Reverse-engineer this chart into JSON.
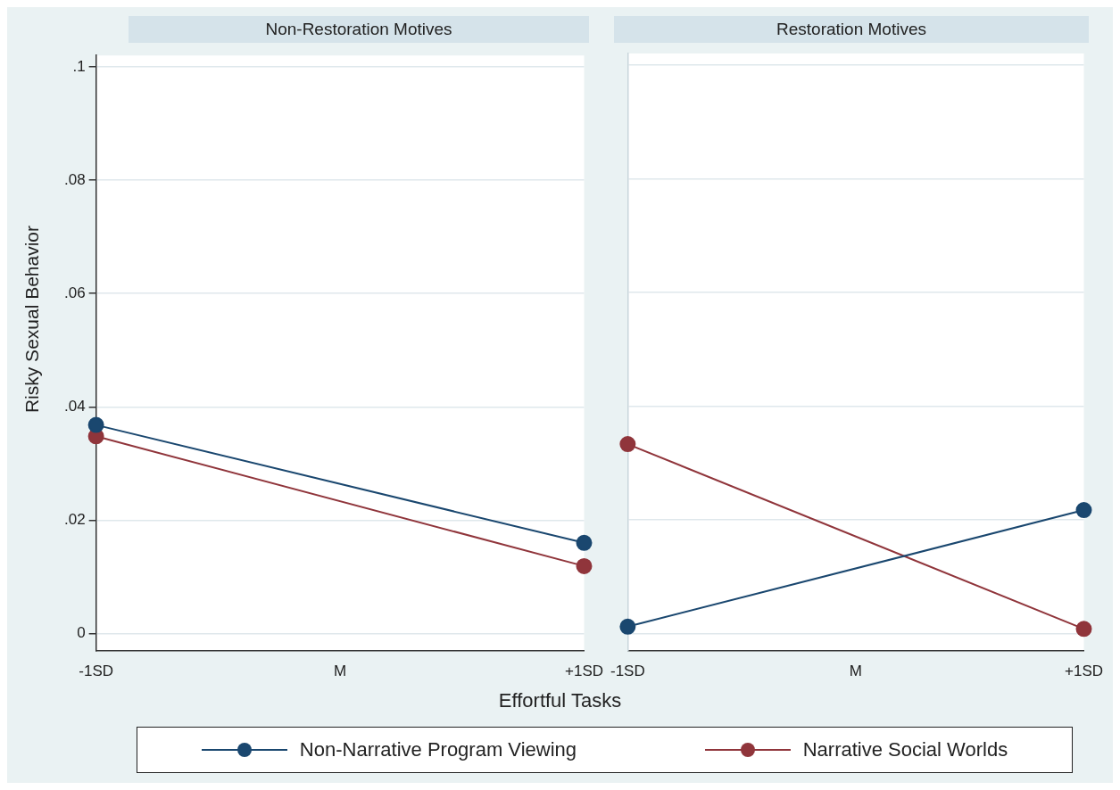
{
  "chart_data": [
    {
      "type": "line",
      "title": "Non-Restoration Motives",
      "xlabel": "Effortful Tasks",
      "ylabel": "Risky Sexual Behavior",
      "categories": [
        "-1SD",
        "M",
        "+1SD"
      ],
      "series": [
        {
          "name": "Non-Narrative Program Viewing",
          "color": "#1a476f",
          "values": [
            0.0368,
            null,
            0.016
          ]
        },
        {
          "name": "Narrative Social Worlds",
          "color": "#90353b",
          "values": [
            0.0348,
            null,
            0.0119
          ]
        }
      ],
      "ylim": [
        -0.003,
        0.102
      ],
      "yticks": [
        0,
        {
          "value": 0.02,
          "label": ".02"
        },
        {
          "value": 0.04,
          "label": ".04"
        },
        {
          "value": 0.06,
          "label": ".06"
        },
        {
          "value": 0.08,
          "label": ".08"
        },
        {
          "value": 0.1,
          "label": ".1"
        }
      ],
      "grid": "y",
      "legend": "bottom",
      "marker": "circle",
      "line_style": "solid"
    },
    {
      "type": "line",
      "title": "Restoration Motives",
      "categories": [
        "-1SD",
        "M",
        "+1SD"
      ],
      "series": [
        {
          "color": "#1a476f",
          "values": [
            0.0012,
            null,
            0.0217
          ]
        },
        {
          "color": "#90353b",
          "values": [
            0.0333,
            null,
            0.0008
          ]
        }
      ],
      "ylim": [
        -0.003,
        0.102
      ],
      "yticks": [
        0,
        0.02,
        0.04,
        0.06,
        0.08,
        0.1
      ],
      "grid": "y",
      "tick_labels": "x",
      "marker": "circle",
      "line_style": "solid"
    }
  ]
}
